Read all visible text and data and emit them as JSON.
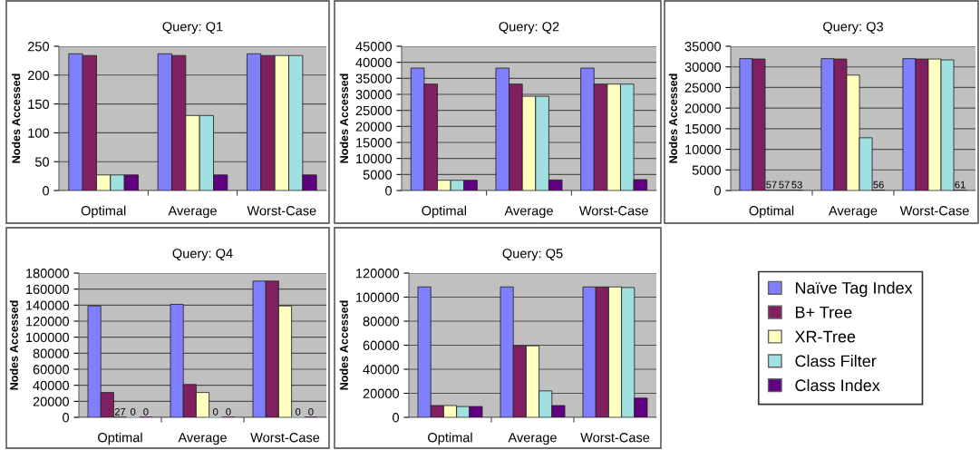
{
  "chart_data": [
    {
      "type": "bar",
      "title": "Query: Q1",
      "ylabel": "Nodes Accessed",
      "categories": [
        "Optimal",
        "Average",
        "Worst-Case"
      ],
      "ylim": [
        0,
        250
      ],
      "yticks": [
        0,
        50,
        100,
        150,
        200,
        250
      ],
      "grid": "y",
      "series": [
        {
          "color": "#8080ff",
          "values": [
            237,
            237,
            237
          ]
        },
        {
          "color": "#802060",
          "values": [
            234,
            234,
            234
          ]
        },
        {
          "color": "#ffffc0",
          "values": [
            27,
            130,
            234
          ]
        },
        {
          "color": "#a0e0e0",
          "values": [
            27,
            130,
            234
          ]
        },
        {
          "color": "#600080",
          "values": [
            27,
            27,
            27
          ]
        }
      ]
    },
    {
      "type": "bar",
      "title": "Query: Q2",
      "ylabel": "Nodes Accessed",
      "categories": [
        "Optimal",
        "Average",
        "Worst-Case"
      ],
      "ylim": [
        0,
        45000
      ],
      "yticks": [
        0,
        5000,
        10000,
        15000,
        20000,
        25000,
        30000,
        35000,
        40000,
        45000
      ],
      "grid": "y",
      "series": [
        {
          "color": "#8080ff",
          "values": [
            38200,
            38200,
            38200
          ]
        },
        {
          "color": "#802060",
          "values": [
            33200,
            33200,
            33200
          ]
        },
        {
          "color": "#ffffc0",
          "values": [
            3200,
            29400,
            33200
          ]
        },
        {
          "color": "#a0e0e0",
          "values": [
            3200,
            29400,
            33200
          ]
        },
        {
          "color": "#600080",
          "values": [
            3200,
            3300,
            3400
          ]
        }
      ]
    },
    {
      "type": "bar",
      "title": "Query: Q3",
      "ylabel": "Nodes Accessed",
      "categories": [
        "Optimal",
        "Average",
        "Worst-Case"
      ],
      "ylim": [
        0,
        35000
      ],
      "yticks": [
        0,
        5000,
        10000,
        15000,
        20000,
        25000,
        30000,
        35000
      ],
      "grid": "y",
      "series": [
        {
          "color": "#8080ff",
          "values": [
            32000,
            32000,
            32000
          ]
        },
        {
          "color": "#802060",
          "values": [
            31900,
            31900,
            31900
          ]
        },
        {
          "color": "#ffffc0",
          "values": [
            57,
            28000,
            31900
          ],
          "value_labels": [
            "57",
            null,
            null
          ]
        },
        {
          "color": "#a0e0e0",
          "values": [
            57,
            12800,
            31700
          ],
          "value_labels": [
            "57",
            null,
            null
          ]
        },
        {
          "color": "#600080",
          "values": [
            53,
            56,
            61
          ],
          "value_labels": [
            "53",
            "56",
            "61"
          ]
        }
      ]
    },
    {
      "type": "bar",
      "title": "Query: Q4",
      "ylabel": "Nodes Accessed",
      "categories": [
        "Optimal",
        "Average",
        "Worst-Case"
      ],
      "ylim": [
        0,
        180000
      ],
      "yticks": [
        0,
        20000,
        40000,
        60000,
        80000,
        100000,
        120000,
        140000,
        160000,
        180000
      ],
      "grid": "y",
      "series": [
        {
          "color": "#8080ff",
          "values": [
            139000,
            141000,
            170000
          ]
        },
        {
          "color": "#802060",
          "values": [
            31000,
            41000,
            170000
          ]
        },
        {
          "color": "#ffffc0",
          "values": [
            27,
            31000,
            139000
          ],
          "value_labels": [
            "27",
            null,
            null
          ]
        },
        {
          "color": "#a0e0e0",
          "values": [
            0,
            0,
            0
          ],
          "value_labels": [
            "0",
            "0",
            "0"
          ]
        },
        {
          "color": "#600080",
          "values": [
            0,
            0,
            0
          ],
          "value_labels": [
            "0",
            "0",
            "0"
          ]
        }
      ]
    },
    {
      "type": "bar",
      "title": "Query: Q5",
      "ylabel": "Nodes Accessed",
      "categories": [
        "Optimal",
        "Average",
        "Worst-Case"
      ],
      "ylim": [
        0,
        120000
      ],
      "yticks": [
        0,
        20000,
        40000,
        60000,
        80000,
        100000,
        120000
      ],
      "grid": "y",
      "legend": "right",
      "series": [
        {
          "name": "Naïve Tag Index",
          "color": "#8080ff",
          "values": [
            108500,
            108500,
            108500
          ]
        },
        {
          "name": "B+ Tree",
          "color": "#802060",
          "values": [
            9800,
            59500,
            108500
          ]
        },
        {
          "name": "XR-Tree",
          "color": "#ffffc0",
          "values": [
            9800,
            59500,
            108500
          ]
        },
        {
          "name": "Class Filter",
          "color": "#a0e0e0",
          "values": [
            9000,
            22000,
            108000
          ]
        },
        {
          "name": "Class Index",
          "color": "#600080",
          "values": [
            9000,
            9800,
            16000
          ]
        }
      ]
    }
  ]
}
